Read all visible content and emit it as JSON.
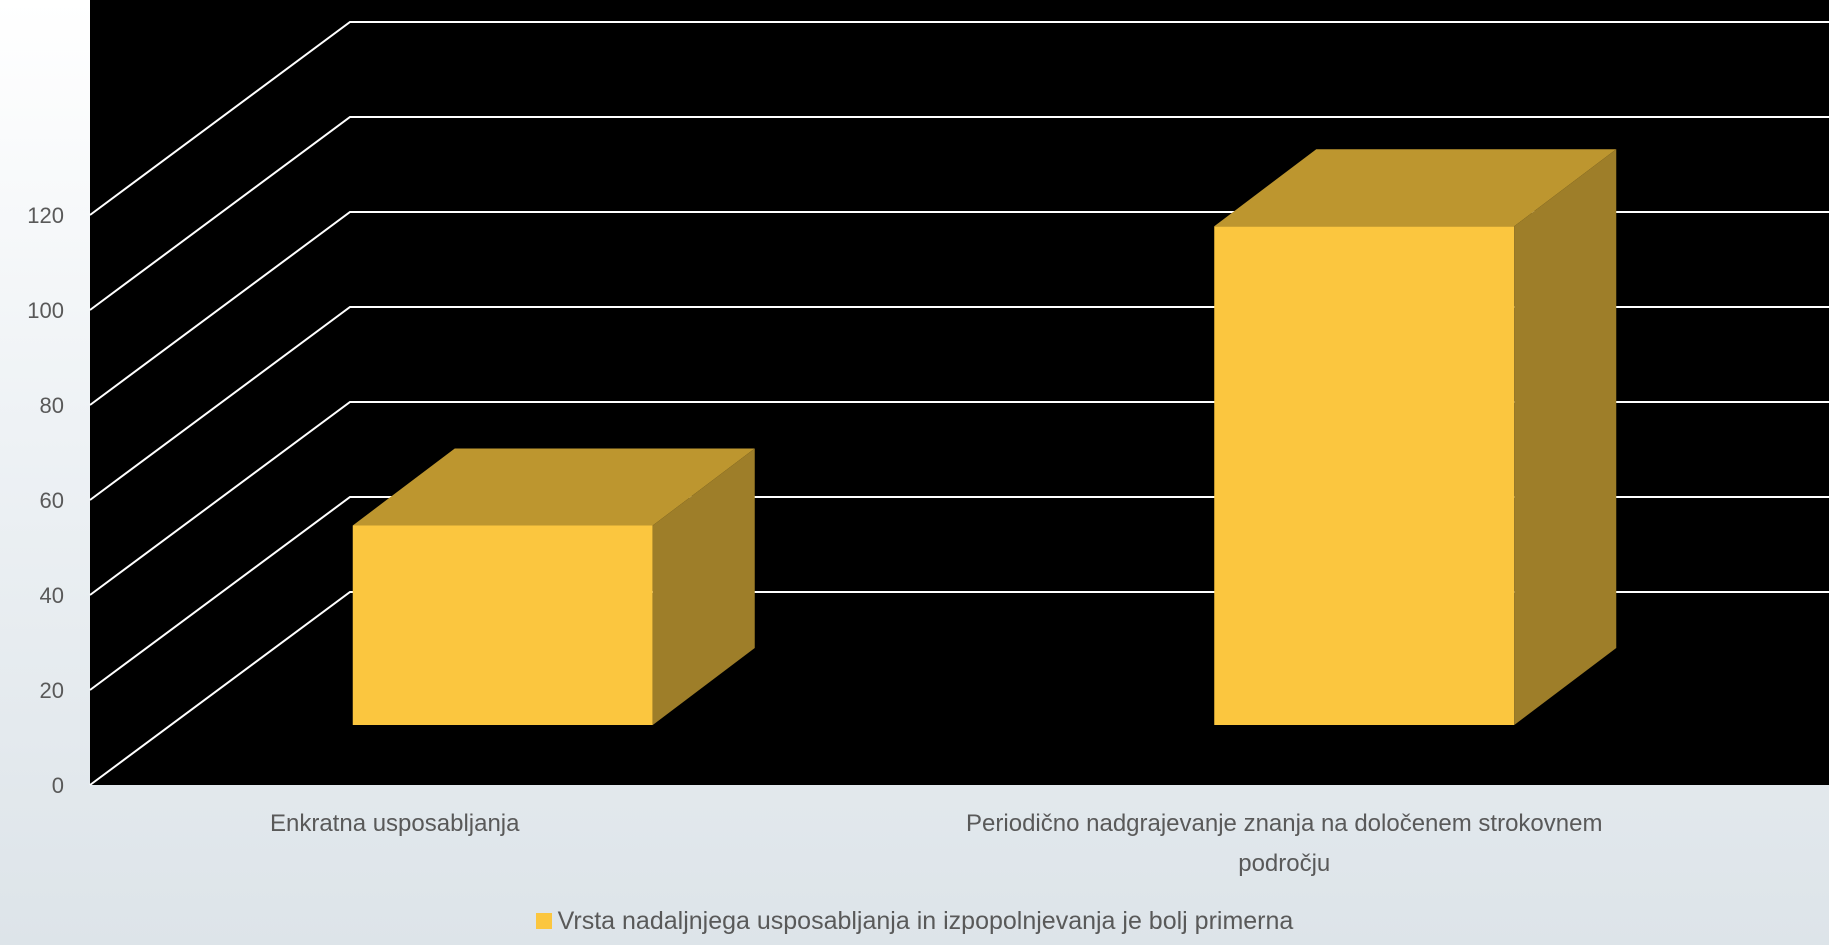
{
  "chart_data": {
    "type": "bar",
    "categories": [
      "Enkratna usposabljanja",
      "Periodično nadgrajevanje znanja na določenem strokovnem področju"
    ],
    "series": [
      {
        "name": "Vrsta nadaljnjega usposabljanja in izpopolnjevanja je bolj primerna",
        "values": [
          42,
          105
        ]
      }
    ],
    "yticks": [
      "0",
      "20",
      "40",
      "60",
      "80",
      "100",
      "120"
    ],
    "ylim": [
      0,
      160
    ],
    "grid": true,
    "legend_position": "bottom",
    "colors": {
      "bar_front": "#fbc63f",
      "bar_top": "#bd962f",
      "bar_side": "#9e7e29",
      "plot_background": "#000000",
      "gridline": "#ffffff"
    }
  }
}
